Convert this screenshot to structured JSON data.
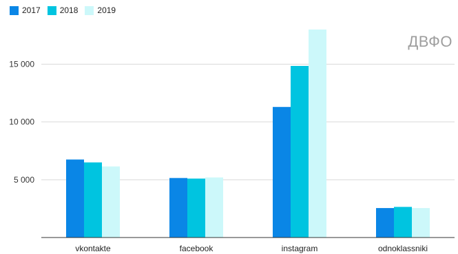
{
  "chart_data": {
    "type": "bar",
    "title": "",
    "annotation": "ДВФО",
    "xlabel": "",
    "ylabel": "",
    "categories": [
      "vkontakte",
      "facebook",
      "instagram",
      "odnoklassniki"
    ],
    "series": [
      {
        "name": "2017",
        "color": "#0a86e6",
        "values": [
          6750,
          5150,
          11300,
          2550
        ]
      },
      {
        "name": "2018",
        "color": "#00c4e0",
        "values": [
          6500,
          5100,
          14850,
          2650
        ]
      },
      {
        "name": "2019",
        "color": "#ccf8fa",
        "values": [
          6150,
          5200,
          18000,
          2550
        ]
      }
    ],
    "ylim": [
      0,
      18000
    ],
    "yticks": [
      {
        "value": 5000,
        "label": "5 000"
      },
      {
        "value": 10000,
        "label": "10 000"
      },
      {
        "value": 15000,
        "label": "15 000"
      }
    ],
    "grid": true,
    "legend_position": "top-left"
  }
}
